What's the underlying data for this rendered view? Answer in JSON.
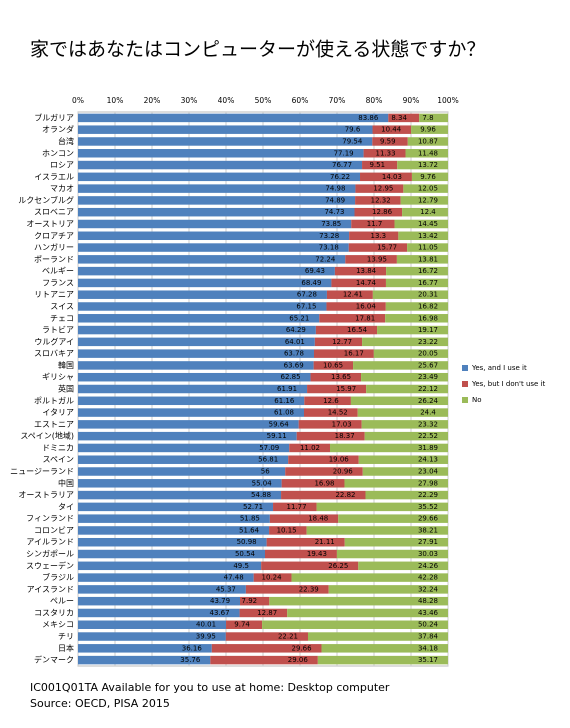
{
  "chart_data": {
    "type": "stacked_barh",
    "title": "家ではあなたはコンピューターが使える状態ですか？",
    "categories": [
      "ブルガリア",
      "オランダ",
      "台湾",
      "ホンコン",
      "ロシア",
      "イスラエル",
      "マカオ",
      "ルクセンブルグ",
      "スロベニア",
      "オーストリア",
      "クロアチア",
      "ハンガリー",
      "ポーランド",
      "ベルギー",
      "フランス",
      "リトアニア",
      "スイス",
      "チェコ",
      "ラトビア",
      "ウルグアイ",
      "スロバキア",
      "韓国",
      "ギリシャ",
      "英国",
      "ポルトガル",
      "イタリア",
      "エストニア",
      "スペイン(地域)",
      "ドミニカ",
      "スペイン",
      "ニュージーランド",
      "中国",
      "オーストラリア",
      "タイ",
      "フィンランド",
      "コロンビア",
      "アイルランド",
      "シンガポール",
      "スウェーデン",
      "ブラジル",
      "アイスランド",
      "ペルー",
      "コスタリカ",
      "メキシコ",
      "チリ",
      "日本",
      "デンマーク"
    ],
    "series": [
      {
        "name": "Yes, and I use it",
        "color": "#4f81bd",
        "values": [
          83.86,
          79.6,
          79.54,
          77.19,
          76.77,
          76.22,
          74.98,
          74.89,
          74.73,
          73.85,
          73.28,
          73.18,
          72.24,
          69.43,
          68.49,
          67.28,
          67.15,
          65.21,
          64.29,
          64.01,
          63.78,
          63.69,
          62.85,
          61.91,
          61.16,
          61.08,
          59.64,
          59.11,
          57.09,
          56.81,
          56,
          55.04,
          54.88,
          52.71,
          51.85,
          51.64,
          50.98,
          50.54,
          49.5,
          47.48,
          45.37,
          43.79,
          43.67,
          40.01,
          39.95,
          36.16,
          35.76
        ]
      },
      {
        "name": "Yes, but I don't use it",
        "color": "#c0504d",
        "values": [
          8.34,
          10.44,
          9.59,
          11.33,
          9.51,
          14.03,
          12.95,
          12.32,
          12.86,
          11.7,
          13.3,
          15.77,
          13.95,
          13.84,
          14.74,
          12.41,
          16.04,
          17.81,
          16.54,
          12.77,
          16.17,
          10.65,
          13.65,
          15.97,
          12.6,
          14.52,
          17.03,
          18.37,
          11.02,
          19.06,
          20.96,
          16.98,
          22.82,
          11.77,
          18.48,
          10.15,
          21.11,
          19.43,
          26.25,
          10.24,
          22.39,
          7.92,
          12.87,
          9.74,
          22.21,
          29.66,
          29.06
        ]
      },
      {
        "name": "No",
        "color": "#9bbb59",
        "values": [
          7.8,
          9.96,
          10.87,
          11.48,
          13.72,
          9.76,
          12.05,
          12.79,
          12.4,
          14.45,
          13.42,
          11.05,
          13.81,
          16.72,
          16.77,
          20.31,
          16.82,
          16.98,
          19.17,
          23.22,
          20.05,
          25.67,
          23.49,
          22.12,
          26.24,
          24.4,
          23.32,
          22.52,
          31.89,
          24.13,
          23.04,
          27.98,
          22.29,
          35.52,
          29.66,
          38.21,
          27.91,
          30.03,
          24.26,
          42.28,
          32.24,
          48.28,
          43.46,
          50.24,
          37.84,
          34.18,
          35.17
        ]
      }
    ],
    "xlim": [
      0,
      100
    ],
    "xticks": [
      {
        "value": 0,
        "label": "0%"
      },
      {
        "value": 10,
        "label": "10%"
      },
      {
        "value": 20,
        "label": "20%"
      },
      {
        "value": 30,
        "label": "30%"
      },
      {
        "value": 40,
        "label": "40%"
      },
      {
        "value": 50,
        "label": "50%"
      },
      {
        "value": 60,
        "label": "60%"
      },
      {
        "value": 70,
        "label": "70%"
      },
      {
        "value": 80,
        "label": "80%"
      },
      {
        "value": 90,
        "label": "90%"
      },
      {
        "value": 100,
        "label": "100%"
      }
    ],
    "grid": true,
    "legend": "right",
    "caption": "IC001Q01TA Available for you to use at home: Desktop computer",
    "source": "Source: OECD, PISA 2015"
  }
}
